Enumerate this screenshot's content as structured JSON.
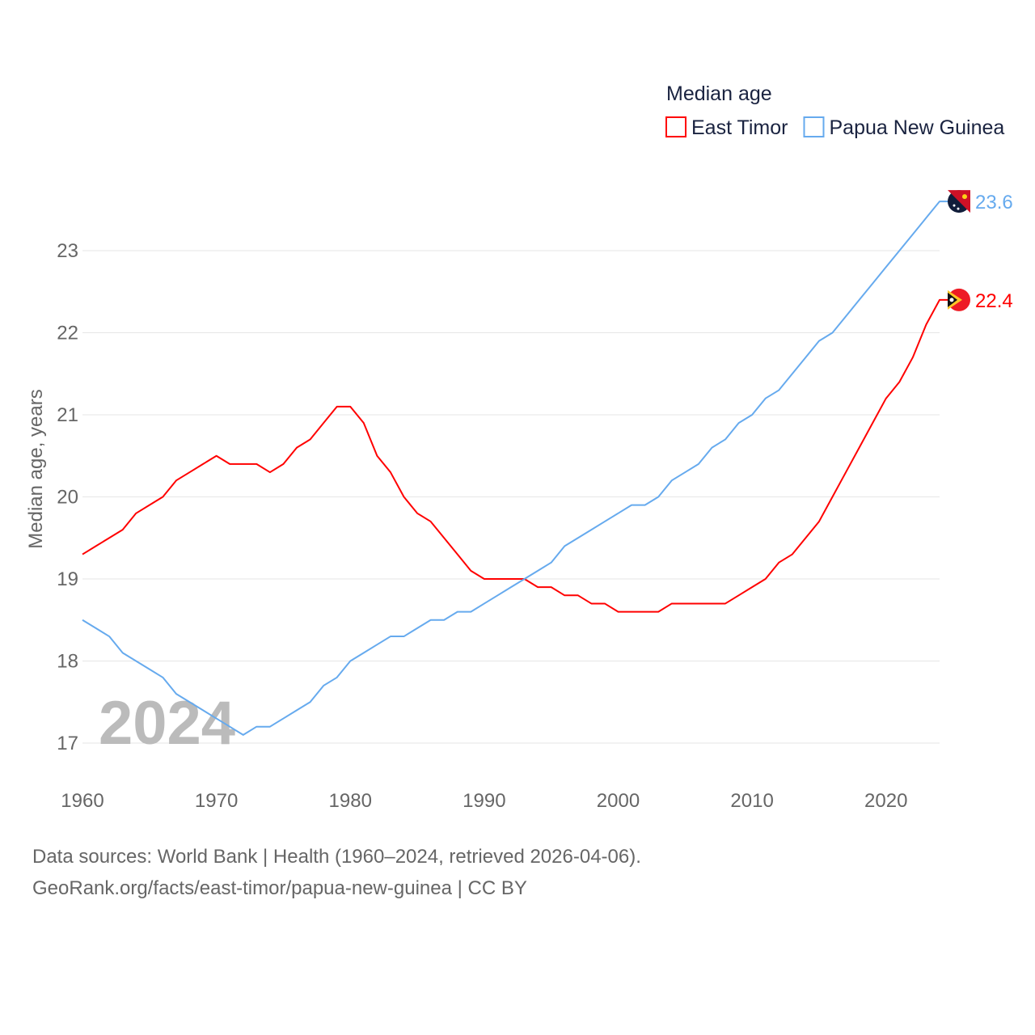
{
  "chart_data": {
    "type": "line",
    "legend_title": "Median age",
    "legend_position": "top-right",
    "ylabel": "Median age, years",
    "xlabel": "",
    "ylim": [
      16.6,
      23.8
    ],
    "xlim": [
      1960,
      2024
    ],
    "yticks": [
      17,
      18,
      19,
      20,
      21,
      22,
      23
    ],
    "xticks": [
      1960,
      1970,
      1980,
      1990,
      2000,
      2010,
      2020
    ],
    "grid": true,
    "year_watermark": "2024",
    "x": [
      1960,
      1961,
      1962,
      1963,
      1964,
      1965,
      1966,
      1967,
      1968,
      1969,
      1970,
      1971,
      1972,
      1973,
      1974,
      1975,
      1976,
      1977,
      1978,
      1979,
      1980,
      1981,
      1982,
      1983,
      1984,
      1985,
      1986,
      1987,
      1988,
      1989,
      1990,
      1991,
      1992,
      1993,
      1994,
      1995,
      1996,
      1997,
      1998,
      1999,
      2000,
      2001,
      2002,
      2003,
      2004,
      2005,
      2006,
      2007,
      2008,
      2009,
      2010,
      2011,
      2012,
      2013,
      2014,
      2015,
      2016,
      2017,
      2018,
      2019,
      2020,
      2021,
      2022,
      2023,
      2024
    ],
    "series": [
      {
        "name": "East Timor",
        "color": "#ff0000",
        "end_label": "22.4",
        "values": [
          19.3,
          19.4,
          19.5,
          19.6,
          19.8,
          19.9,
          20.0,
          20.2,
          20.3,
          20.4,
          20.5,
          20.4,
          20.4,
          20.4,
          20.3,
          20.4,
          20.6,
          20.7,
          20.9,
          21.1,
          21.1,
          20.9,
          20.5,
          20.3,
          20.0,
          19.8,
          19.7,
          19.5,
          19.3,
          19.1,
          19.0,
          19.0,
          19.0,
          19.0,
          18.9,
          18.9,
          18.8,
          18.8,
          18.7,
          18.7,
          18.6,
          18.6,
          18.6,
          18.6,
          18.7,
          18.7,
          18.7,
          18.7,
          18.7,
          18.8,
          18.9,
          19.0,
          19.2,
          19.3,
          19.5,
          19.7,
          20.0,
          20.3,
          20.6,
          20.9,
          21.2,
          21.4,
          21.7,
          22.1,
          22.4
        ]
      },
      {
        "name": "Papua New Guinea",
        "color": "#66aaee",
        "end_label": "23.6",
        "values": [
          18.5,
          18.4,
          18.3,
          18.1,
          18.0,
          17.9,
          17.8,
          17.6,
          17.5,
          17.4,
          17.3,
          17.2,
          17.1,
          17.2,
          17.2,
          17.3,
          17.4,
          17.5,
          17.7,
          17.8,
          18.0,
          18.1,
          18.2,
          18.3,
          18.3,
          18.4,
          18.5,
          18.5,
          18.6,
          18.6,
          18.7,
          18.8,
          18.9,
          19.0,
          19.1,
          19.2,
          19.4,
          19.5,
          19.6,
          19.7,
          19.8,
          19.9,
          19.9,
          20.0,
          20.2,
          20.3,
          20.4,
          20.6,
          20.7,
          20.9,
          21.0,
          21.2,
          21.3,
          21.5,
          21.7,
          21.9,
          22.0,
          22.2,
          22.4,
          22.6,
          22.8,
          23.0,
          23.2,
          23.4,
          23.6
        ]
      }
    ]
  },
  "footer": {
    "line1": "Data sources: World Bank | Health (1960–2024, retrieved 2026-04-06).",
    "line2": "GeoRank.org/facts/east-timor/papua-new-guinea | CC BY"
  }
}
